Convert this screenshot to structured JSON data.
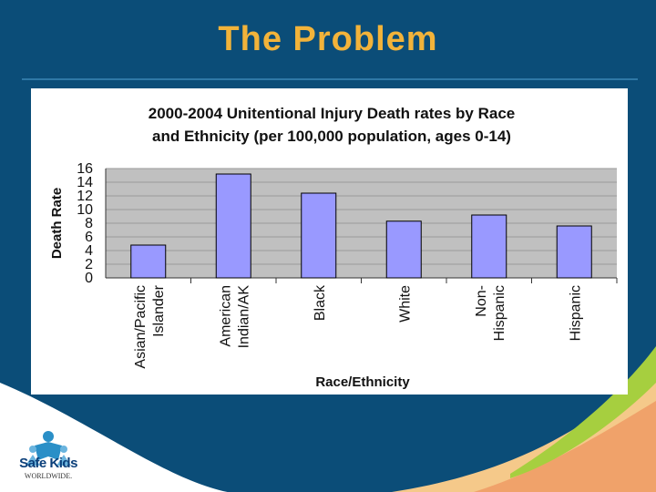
{
  "slide": {
    "title": "The Problem"
  },
  "logo": {
    "name": "Safe Kids",
    "subtitle": "WORLDWIDE."
  },
  "colors": {
    "background": "#0b4d78",
    "title": "#f2b33a",
    "bar_fill": "#9999ff",
    "plot_bg": "#c0c0c0"
  },
  "chart_data": {
    "type": "bar",
    "title_lines": [
      "2000-2004 Unitentional Injury Death rates by Race",
      "and Ethnicity (per 100,000 population, ages 0-14)"
    ],
    "xlabel": "Race/Ethnicity",
    "ylabel": "Death Rate",
    "ylim": [
      0,
      16
    ],
    "yticks": [
      "0",
      "2",
      "4",
      "6",
      "8",
      "10",
      "12",
      "14",
      "16"
    ],
    "grid": true,
    "categories": [
      [
        "Asian/Pacific",
        "Islander"
      ],
      [
        "American",
        "Indian/AK"
      ],
      [
        "Black"
      ],
      [
        "White"
      ],
      [
        "Non-",
        "Hispanic"
      ],
      [
        "Hispanic"
      ]
    ],
    "values": [
      4.8,
      15.2,
      12.4,
      8.3,
      9.2,
      7.6
    ]
  }
}
